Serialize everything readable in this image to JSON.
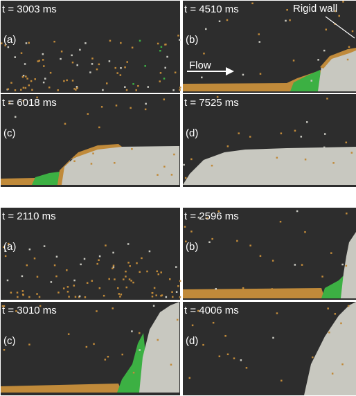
{
  "figure": {
    "groups": [
      {
        "panels": [
          {
            "time": "t = 3003 ms",
            "label": "(a)"
          },
          {
            "time": "t = 4510 ms",
            "label": "(b)"
          },
          {
            "time": "t = 6018 ms",
            "label": "(c)"
          },
          {
            "time": "t = 7525 ms",
            "label": "(d)"
          }
        ]
      },
      {
        "panels": [
          {
            "time": "t = 2110 ms",
            "label": "(a)"
          },
          {
            "time": "t = 2596 ms",
            "label": "(b)"
          },
          {
            "time": "t = 3010 ms",
            "label": "(c)"
          },
          {
            "time": "t = 4006 ms",
            "label": "(d)"
          }
        ]
      }
    ],
    "annotations": {
      "rigid_wall": "Rigid wall",
      "flow": "Flow"
    }
  }
}
